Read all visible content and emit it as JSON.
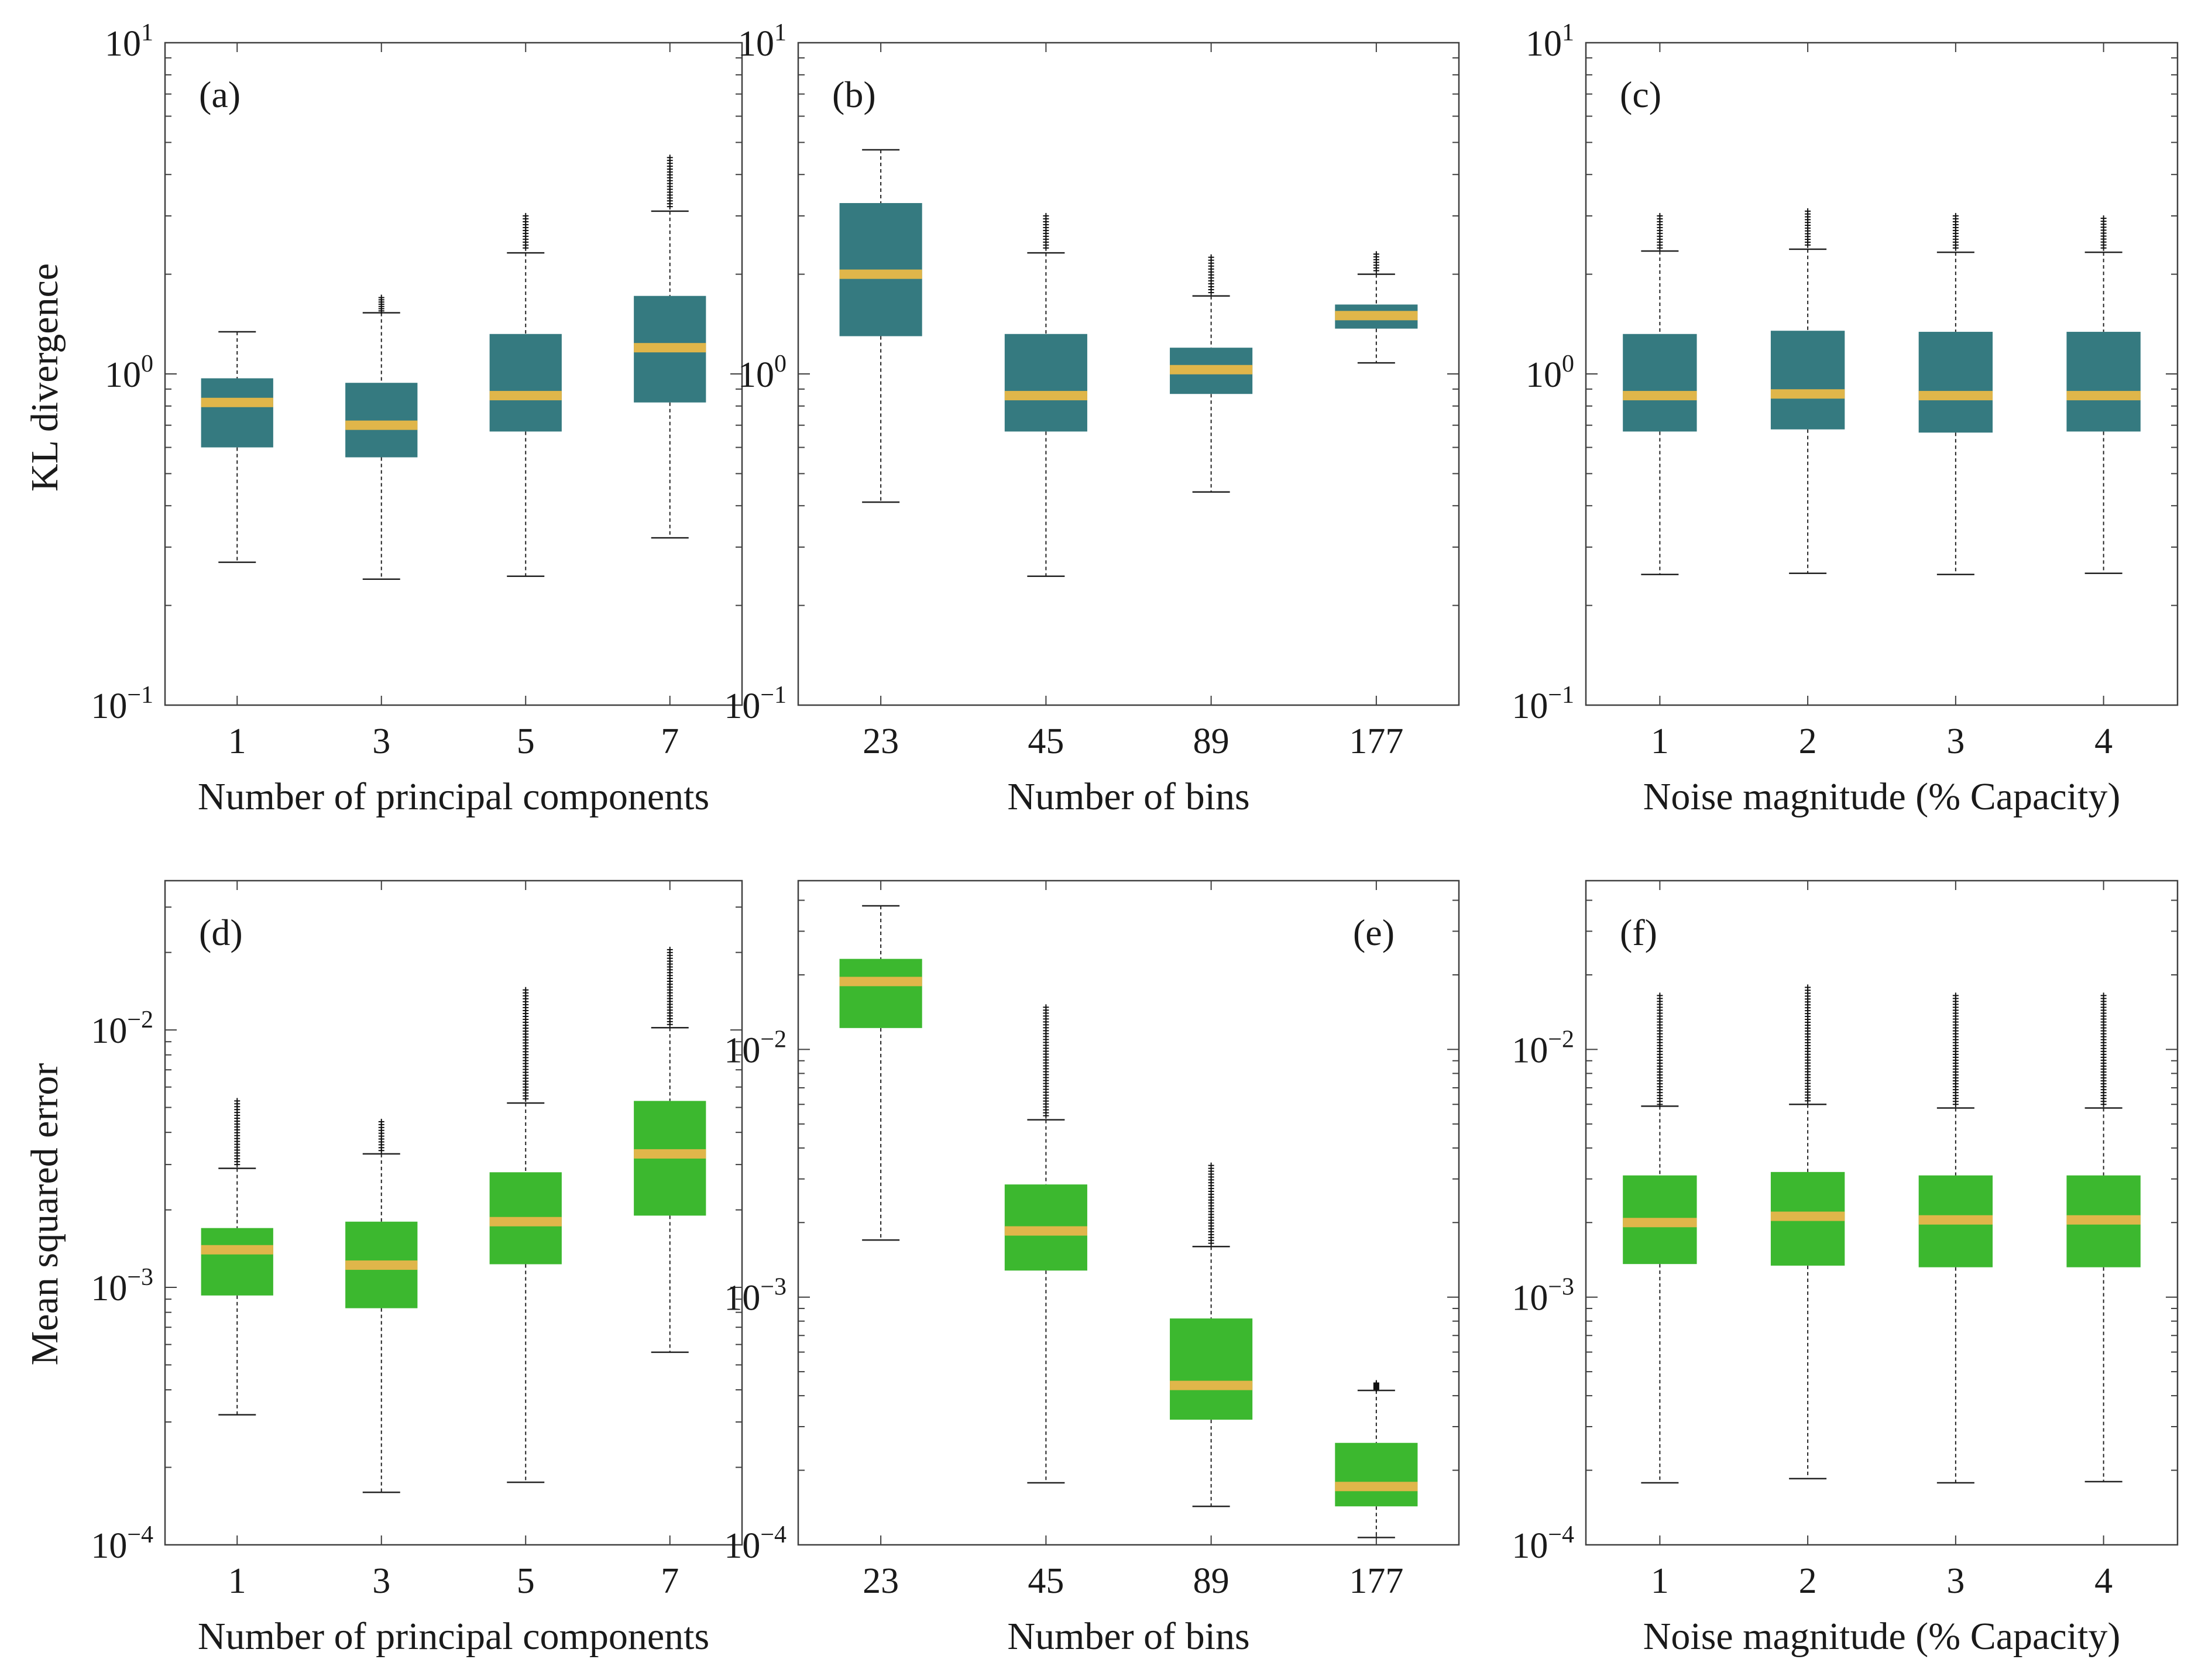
{
  "colors": {
    "kl_box": "#357a80",
    "mse_box": "#3cb82f",
    "median": "#e0b64a",
    "axis": "#404040"
  },
  "figure": {
    "rows": [
      {
        "ylabel": "KL divergence",
        "yticks": [
          "10",
          "10"
        ],
        "ytick_exp": [
          "1",
          "0",
          "−1"
        ]
      },
      {
        "ylabel": "Mean squared error"
      }
    ]
  },
  "chart_data": [
    {
      "type": "box",
      "panel": "(a)",
      "row": 0,
      "col": 0,
      "xlabel": "Number of principal components",
      "ylabel": "KL divergence",
      "yscale": "log",
      "ylim": [
        0.1,
        10
      ],
      "yticks": [
        {
          "base": "10",
          "exp": "1"
        },
        {
          "base": "10",
          "exp": "0"
        },
        {
          "base": "10",
          "exp": "−1"
        }
      ],
      "categories": [
        "1",
        "3",
        "5",
        "7"
      ],
      "boxes": [
        {
          "whislo": 0.27,
          "q1": 0.6,
          "med": 0.82,
          "q3": 0.97,
          "whishi": 1.34,
          "fliers_lo": null,
          "fliers_hi": null
        },
        {
          "whislo": 0.24,
          "q1": 0.56,
          "med": 0.7,
          "q3": 0.94,
          "whishi": 1.53,
          "fliers_lo": 1.55,
          "fliers_hi": 1.7
        },
        {
          "whislo": 0.245,
          "q1": 0.67,
          "med": 0.86,
          "q3": 1.32,
          "whishi": 2.32,
          "fliers_lo": 2.4,
          "fliers_hi": 3.0
        },
        {
          "whislo": 0.32,
          "q1": 0.82,
          "med": 1.2,
          "q3": 1.72,
          "whishi": 3.1,
          "fliers_lo": 3.2,
          "fliers_hi": 4.5
        }
      ]
    },
    {
      "type": "box",
      "panel": "(b)",
      "row": 0,
      "col": 1,
      "xlabel": "Number of bins",
      "ylabel": "",
      "yscale": "log",
      "ylim": [
        0.1,
        10
      ],
      "yticks": [
        {
          "base": "10",
          "exp": "1"
        },
        {
          "base": "10",
          "exp": "0"
        },
        {
          "base": "10",
          "exp": "−1"
        }
      ],
      "categories": [
        "23",
        "45",
        "89",
        "177"
      ],
      "boxes": [
        {
          "whislo": 0.41,
          "q1": 1.3,
          "med": 2.0,
          "q3": 3.28,
          "whishi": 4.75,
          "fliers_lo": null,
          "fliers_hi": null
        },
        {
          "whislo": 0.245,
          "q1": 0.67,
          "med": 0.86,
          "q3": 1.32,
          "whishi": 2.32,
          "fliers_lo": 2.4,
          "fliers_hi": 3.0
        },
        {
          "whislo": 0.44,
          "q1": 0.87,
          "med": 1.03,
          "q3": 1.2,
          "whishi": 1.72,
          "fliers_lo": 1.76,
          "fliers_hi": 2.25
        },
        {
          "whislo": 1.08,
          "q1": 1.37,
          "med": 1.5,
          "q3": 1.62,
          "whishi": 2.0,
          "fliers_lo": 2.05,
          "fliers_hi": 2.3
        }
      ]
    },
    {
      "type": "box",
      "panel": "(c)",
      "row": 0,
      "col": 2,
      "xlabel": "Noise magnitude (% Capacity)",
      "ylabel": "",
      "yscale": "log",
      "ylim": [
        0.1,
        10
      ],
      "yticks": [
        {
          "base": "10",
          "exp": "1"
        },
        {
          "base": "10",
          "exp": "0"
        },
        {
          "base": "10",
          "exp": "−1"
        }
      ],
      "categories": [
        "1",
        "2",
        "3",
        "4"
      ],
      "boxes": [
        {
          "whislo": 0.248,
          "q1": 0.67,
          "med": 0.86,
          "q3": 1.32,
          "whishi": 2.35,
          "fliers_lo": 2.4,
          "fliers_hi": 3.0
        },
        {
          "whislo": 0.25,
          "q1": 0.68,
          "med": 0.87,
          "q3": 1.35,
          "whishi": 2.38,
          "fliers_lo": 2.45,
          "fliers_hi": 3.1
        },
        {
          "whislo": 0.248,
          "q1": 0.665,
          "med": 0.86,
          "q3": 1.34,
          "whishi": 2.33,
          "fliers_lo": 2.4,
          "fliers_hi": 3.0
        },
        {
          "whislo": 0.25,
          "q1": 0.67,
          "med": 0.86,
          "q3": 1.34,
          "whishi": 2.33,
          "fliers_lo": 2.4,
          "fliers_hi": 2.95
        }
      ]
    },
    {
      "type": "box",
      "panel": "(d)",
      "row": 1,
      "col": 0,
      "xlabel": "Number of principal components",
      "ylabel": "Mean squared error",
      "yscale": "log",
      "ylim": [
        0.0001,
        0.038
      ],
      "yticks": [
        {
          "base": "10",
          "exp": "−2"
        },
        {
          "base": "10",
          "exp": "−3"
        },
        {
          "base": "10",
          "exp": "−4"
        }
      ],
      "categories": [
        "1",
        "3",
        "5",
        "7"
      ],
      "boxes": [
        {
          "whislo": 0.00032,
          "q1": 0.00093,
          "med": 0.0014,
          "q3": 0.0017,
          "whishi": 0.0029,
          "fliers_lo": 0.003,
          "fliers_hi": 0.0053
        },
        {
          "whislo": 0.00016,
          "q1": 0.00083,
          "med": 0.00122,
          "q3": 0.0018,
          "whishi": 0.0033,
          "fliers_lo": 0.0034,
          "fliers_hi": 0.0044
        },
        {
          "whislo": 0.000175,
          "q1": 0.00123,
          "med": 0.0018,
          "q3": 0.0028,
          "whishi": 0.0052,
          "fliers_lo": 0.0054,
          "fliers_hi": 0.0143
        },
        {
          "whislo": 0.00056,
          "q1": 0.0019,
          "med": 0.0033,
          "q3": 0.0053,
          "whishi": 0.0102,
          "fliers_lo": 0.0105,
          "fliers_hi": 0.0205
        }
      ]
    },
    {
      "type": "box",
      "panel": "(e)",
      "row": 1,
      "col": 1,
      "xlabel": "Number of bins",
      "ylabel": "",
      "yscale": "log",
      "ylim": [
        0.0001,
        0.048
      ],
      "yticks": [
        {
          "base": "10",
          "exp": "−2"
        },
        {
          "base": "10",
          "exp": "−3"
        },
        {
          "base": "10",
          "exp": "−4"
        }
      ],
      "categories": [
        "23",
        "45",
        "89",
        "177"
      ],
      "boxes": [
        {
          "whislo": 0.0017,
          "q1": 0.0122,
          "med": 0.0188,
          "q3": 0.0232,
          "whishi": 0.038,
          "fliers_lo": null,
          "fliers_hi": null
        },
        {
          "whislo": 0.000178,
          "q1": 0.00128,
          "med": 0.00185,
          "q3": 0.00285,
          "whishi": 0.0052,
          "fliers_lo": 0.0054,
          "fliers_hi": 0.0148
        },
        {
          "whislo": 0.000143,
          "q1": 0.00032,
          "med": 0.00044,
          "q3": 0.00082,
          "whishi": 0.0016,
          "fliers_lo": 0.00165,
          "fliers_hi": 0.0034
        },
        {
          "whislo": 0.000107,
          "q1": 0.000143,
          "med": 0.000172,
          "q3": 0.000258,
          "whishi": 0.00042,
          "fliers_lo": 0.000425,
          "fliers_hi": 0.00045
        }
      ]
    },
    {
      "type": "box",
      "panel": "(f)",
      "row": 1,
      "col": 2,
      "xlabel": "Noise magnitude (% Capacity)",
      "ylabel": "",
      "yscale": "log",
      "ylim": [
        0.0001,
        0.048
      ],
      "yticks": [
        {
          "base": "10",
          "exp": "−2"
        },
        {
          "base": "10",
          "exp": "−3"
        },
        {
          "base": "10",
          "exp": "−4"
        }
      ],
      "categories": [
        "1",
        "2",
        "3",
        "4"
      ],
      "boxes": [
        {
          "whislo": 0.000178,
          "q1": 0.00136,
          "med": 0.002,
          "q3": 0.0031,
          "whishi": 0.0059,
          "fliers_lo": 0.006,
          "fliers_hi": 0.0165
        },
        {
          "whislo": 0.000185,
          "q1": 0.00134,
          "med": 0.00212,
          "q3": 0.0032,
          "whishi": 0.006,
          "fliers_lo": 0.0062,
          "fliers_hi": 0.0178
        },
        {
          "whislo": 0.000178,
          "q1": 0.00132,
          "med": 0.00205,
          "q3": 0.0031,
          "whishi": 0.0058,
          "fliers_lo": 0.006,
          "fliers_hi": 0.0165
        },
        {
          "whislo": 0.00018,
          "q1": 0.00132,
          "med": 0.00205,
          "q3": 0.0031,
          "whishi": 0.0058,
          "fliers_lo": 0.006,
          "fliers_hi": 0.0165
        }
      ]
    }
  ]
}
